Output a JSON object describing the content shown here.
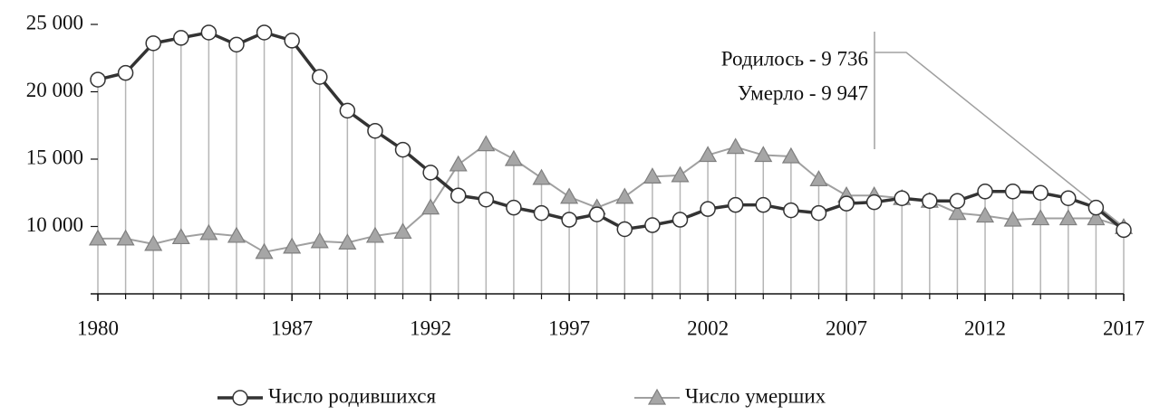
{
  "chart_data": {
    "type": "line",
    "x": [
      1980,
      1981,
      1982,
      1983,
      1984,
      1985,
      1986,
      1987,
      1988,
      1989,
      1990,
      1991,
      1992,
      1993,
      1994,
      1995,
      1996,
      1997,
      1998,
      1999,
      2000,
      2001,
      2002,
      2003,
      2004,
      2005,
      2006,
      2007,
      2008,
      2009,
      2010,
      2011,
      2012,
      2013,
      2014,
      2015,
      2016,
      2017
    ],
    "xlim": [
      1980,
      2017
    ],
    "xticks": [
      1980,
      1987,
      1992,
      1997,
      2002,
      2007,
      2012,
      2017
    ],
    "ylim": [
      5000,
      25000
    ],
    "yticks": [
      {
        "value": 10000,
        "label": "10 000"
      },
      {
        "value": 15000,
        "label": "15 000"
      },
      {
        "value": 20000,
        "label": "20 000"
      },
      {
        "value": 25000,
        "label": "25 000"
      }
    ],
    "series": [
      {
        "name": "Число родившихся",
        "color": "#333333",
        "marker": "circle",
        "values": [
          20900,
          21400,
          23600,
          24000,
          24400,
          23500,
          24400,
          23800,
          21100,
          18600,
          17100,
          15700,
          14000,
          12300,
          12000,
          11400,
          11000,
          10500,
          10900,
          9800,
          10100,
          10500,
          11300,
          11600,
          11600,
          11200,
          11000,
          11700,
          11800,
          12100,
          11900,
          11900,
          12600,
          12600,
          12500,
          12100,
          11400,
          9736
        ]
      },
      {
        "name": "Число умерших",
        "color": "#a0a0a0",
        "marker": "triangle",
        "values": [
          9100,
          9100,
          8700,
          9200,
          9500,
          9300,
          8100,
          8500,
          8900,
          8800,
          9300,
          9600,
          11400,
          14600,
          16100,
          15000,
          13600,
          12200,
          11400,
          12200,
          13700,
          13800,
          15300,
          15900,
          15300,
          15200,
          13500,
          12300,
          12300,
          12100,
          11900,
          11000,
          10800,
          10500,
          10600,
          10600,
          10600,
          9947
        ]
      }
    ],
    "annotations": [
      "Родилось - 9 736",
      "Умерло - 9 947"
    ]
  }
}
